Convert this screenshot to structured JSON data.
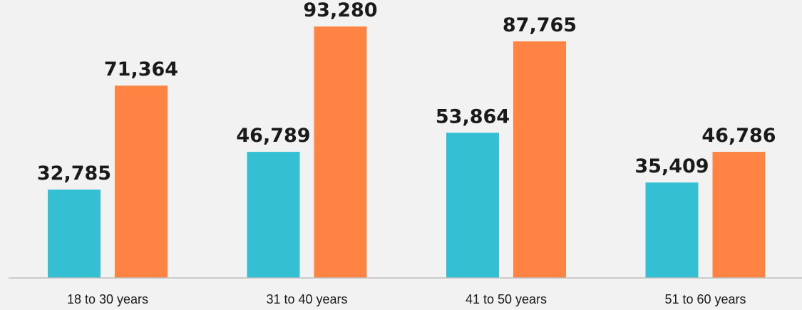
{
  "chart_data": {
    "type": "bar",
    "categories": [
      "18 to 30 years",
      "31 to 40 years",
      "41 to 50 years",
      "51 to 60 years"
    ],
    "series": [
      {
        "color": "#35bfd3",
        "values": [
          32785,
          46789,
          53864,
          35409
        ]
      },
      {
        "color": "#ff8444",
        "values": [
          71364,
          93280,
          87765,
          46786
        ]
      }
    ],
    "data_labels": [
      [
        "32,785",
        "46,789",
        "53,864",
        "35,409"
      ],
      [
        "71,364",
        "93,280",
        "87,765",
        "46,786"
      ]
    ],
    "title": "",
    "xlabel": "",
    "ylabel": "",
    "ylim": [
      0,
      100000
    ],
    "grid": false,
    "legend": "none",
    "axis_color": "#bfbfbf"
  }
}
